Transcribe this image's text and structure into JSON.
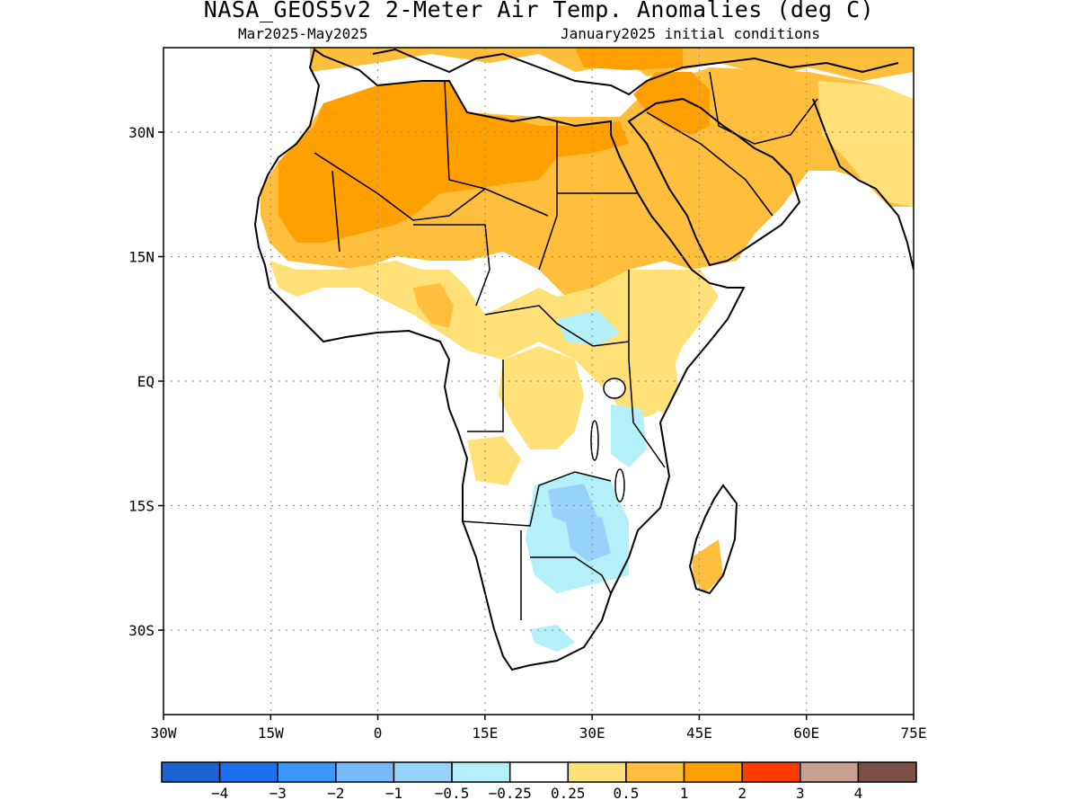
{
  "header": {
    "title": "NASA_GEOS5v2 2-Meter Air Temp. Anomalies (deg C)",
    "period": "Mar2025-May2025",
    "init": "January2025 initial conditions"
  },
  "map": {
    "projection": "lat-lon",
    "lon_range": [
      -30,
      75
    ],
    "lat_range": [
      -40,
      40
    ],
    "grid": true,
    "lat_ticks": [
      {
        "value": 30,
        "label": "30N"
      },
      {
        "value": 15,
        "label": "15N"
      },
      {
        "value": 0,
        "label": "EQ"
      },
      {
        "value": -15,
        "label": "15S"
      },
      {
        "value": -30,
        "label": "30S"
      }
    ],
    "lon_ticks": [
      {
        "value": -30,
        "label": "30W"
      },
      {
        "value": -15,
        "label": "15W"
      },
      {
        "value": 0,
        "label": "0"
      },
      {
        "value": 15,
        "label": "15E"
      },
      {
        "value": 30,
        "label": "30E"
      },
      {
        "value": 45,
        "label": "45E"
      },
      {
        "value": 60,
        "label": "60E"
      },
      {
        "value": 75,
        "label": "75E"
      }
    ]
  },
  "colorbar": {
    "colors": [
      "#1a64d2",
      "#1e6ef0",
      "#3c96f5",
      "#78b9fa",
      "#96d2fa",
      "#b4f0fa",
      "#ffffff",
      "#ffe178",
      "#ffbe3c",
      "#ffa000",
      "#ff3c00",
      "#c8a091",
      "#7d5046"
    ],
    "labels": [
      "-4",
      "-3",
      "-2",
      "-1",
      "-0.5",
      "-0.25",
      "0.25",
      "0.5",
      "1",
      "2",
      "3",
      "4"
    ]
  }
}
